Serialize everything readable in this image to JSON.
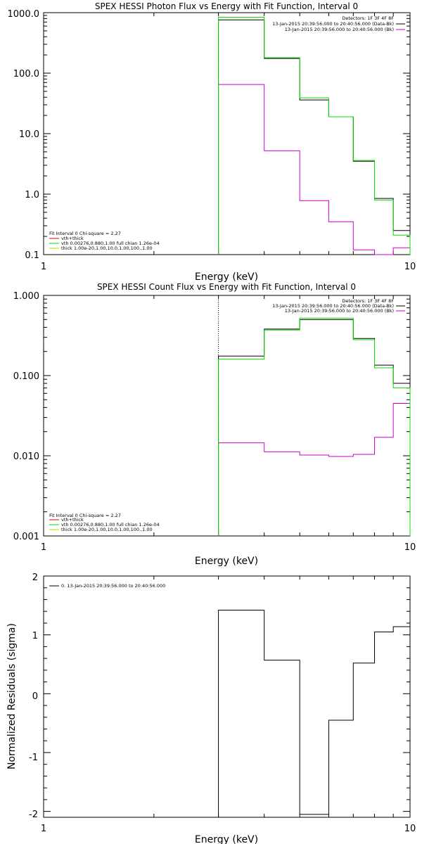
{
  "colors": {
    "data": "#000000",
    "total_fit": "#00dd00",
    "background": "#cc00cc",
    "vth_component": "#dd0000",
    "thick_component": "#cccc00",
    "axes": "#000000"
  },
  "chart_data": [
    {
      "type": "line",
      "step": true,
      "title": "SPEX HESSI Photon Flux vs Energy with Fit Function, Interval 0",
      "xlabel": "Energy (keV)",
      "ylabel": "",
      "x_scale": "log",
      "y_scale": "log",
      "xlim": [
        1,
        10
      ],
      "ylim": [
        0.1,
        1000
      ],
      "x_ticks": [
        "1",
        "10"
      ],
      "y_ticks": [
        "0.1",
        "1.0",
        "10.0",
        "100.0",
        "1000.0"
      ],
      "energy_edges": [
        3,
        4,
        5,
        6,
        7,
        8,
        9,
        10
      ],
      "fit_range_marker_energy": 3,
      "series": [
        {
          "name": "13-Jan-2015 20:39:56.000 to 20:40:56.000 (Data-Bk)",
          "color": "#000000",
          "values": [
            760,
            175,
            36,
            19,
            3.5,
            0.85,
            0.25
          ]
        },
        {
          "name": "vth+thick",
          "color": "#00dd00",
          "values": [
            840,
            180,
            39,
            19,
            3.6,
            0.8,
            0.21
          ]
        },
        {
          "name": "13-Jan-2015 20:39:56.000 to 20:40:56.000 (Bk)",
          "color": "#cc00cc",
          "values": [
            65,
            5.2,
            0.78,
            0.35,
            0.12,
            0.1,
            0.13
          ]
        }
      ],
      "legend_top": {
        "detectors": "Detectors: 1F 3F 4F 8F",
        "entries": [
          {
            "text": "13-Jan-2015 20:39:56.000 to 20:40:56.000 (Data-Bk)",
            "color": "#000000"
          },
          {
            "text": "13-Jan-2015 20:39:56.000 to 20:40:56.000 (Bk)",
            "color": "#cc00cc"
          }
        ]
      },
      "legend_bottom": {
        "header": "Fit Interval 0   Chi-square = 2.27",
        "entries": [
          {
            "text": "vth+thick",
            "color": "#dd0000"
          },
          {
            "text": "vth 0.00276,0.880,1.00  full chian 1.26e-04",
            "color": "#00dd00"
          },
          {
            "text": "thick 1.00e-20,1.00,10.0,1.00,100.,1.00",
            "color": "#cccc00"
          }
        ]
      }
    },
    {
      "type": "line",
      "step": true,
      "title": "SPEX HESSI Count Flux vs Energy with Fit Function, Interval 0",
      "xlabel": "Energy (keV)",
      "ylabel": "",
      "x_scale": "log",
      "y_scale": "log",
      "xlim": [
        1,
        10
      ],
      "ylim": [
        0.001,
        1
      ],
      "x_ticks": [
        "1",
        "10"
      ],
      "y_ticks": [
        "0.001",
        "0.010",
        "0.100",
        "1.000"
      ],
      "energy_edges": [
        3,
        4,
        5,
        6,
        7,
        8,
        9,
        10
      ],
      "fit_range_marker_energy": 3,
      "series": [
        {
          "name": "13-Jan-2015 20:39:56.000 to 20:40:56.000 (Data-Bk)",
          "color": "#000000",
          "values": [
            0.175,
            0.38,
            0.5,
            0.5,
            0.29,
            0.135,
            0.08
          ]
        },
        {
          "name": "vth+thick",
          "color": "#00dd00",
          "values": [
            0.16,
            0.37,
            0.52,
            0.52,
            0.28,
            0.125,
            0.07
          ]
        },
        {
          "name": "13-Jan-2015 20:39:56.000 to 20:40:56.000 (Bk)",
          "color": "#cc00cc",
          "values": [
            0.0145,
            0.0112,
            0.0102,
            0.0098,
            0.0104,
            0.017,
            0.045
          ]
        }
      ],
      "legend_top": {
        "detectors": "Detectors: 1F 3F 4F 8F",
        "entries": [
          {
            "text": "13-Jan-2015 20:39:56.000 to 20:40:56.000 (Data-Bk)",
            "color": "#000000"
          },
          {
            "text": "13-Jan-2015 20:39:56.000 to 20:40:56.000 (Bk)",
            "color": "#cc00cc"
          }
        ]
      },
      "legend_bottom": {
        "header": "Fit Interval 0   Chi-square = 2.27",
        "entries": [
          {
            "text": "vth+thick",
            "color": "#dd0000"
          },
          {
            "text": "vth 0.00276,0.880,1.00  full chian 1.26e-04",
            "color": "#00dd00"
          },
          {
            "text": "thick 1.00e-20,1.00,10.0,1.00,100.,1.00",
            "color": "#cccc00"
          }
        ]
      }
    },
    {
      "type": "line",
      "step": true,
      "title": "",
      "xlabel": "Energy (keV)",
      "ylabel": "Normalized Residuals (sigma)",
      "x_scale": "log",
      "y_scale": "linear",
      "xlim": [
        1,
        10
      ],
      "ylim": [
        -2.1,
        2
      ],
      "x_ticks": [
        "1",
        "10"
      ],
      "y_ticks": [
        "-2",
        "-1",
        "0",
        "1",
        "2"
      ],
      "energy_edges": [
        3,
        4,
        5,
        6,
        7,
        8,
        9,
        10
      ],
      "series": [
        {
          "name": "0. 13-Jan-2015 20:39:56.000 to 20:40:56.000",
          "color": "#000000",
          "values": [
            1.42,
            0.57,
            -2.05,
            -0.45,
            0.52,
            1.05,
            1.14
          ]
        }
      ],
      "legend_top": {
        "entries": [
          {
            "text": "0. 13-Jan-2015 20:39:56.000 to 20:40:56.000",
            "color": "#000000"
          }
        ]
      }
    }
  ]
}
